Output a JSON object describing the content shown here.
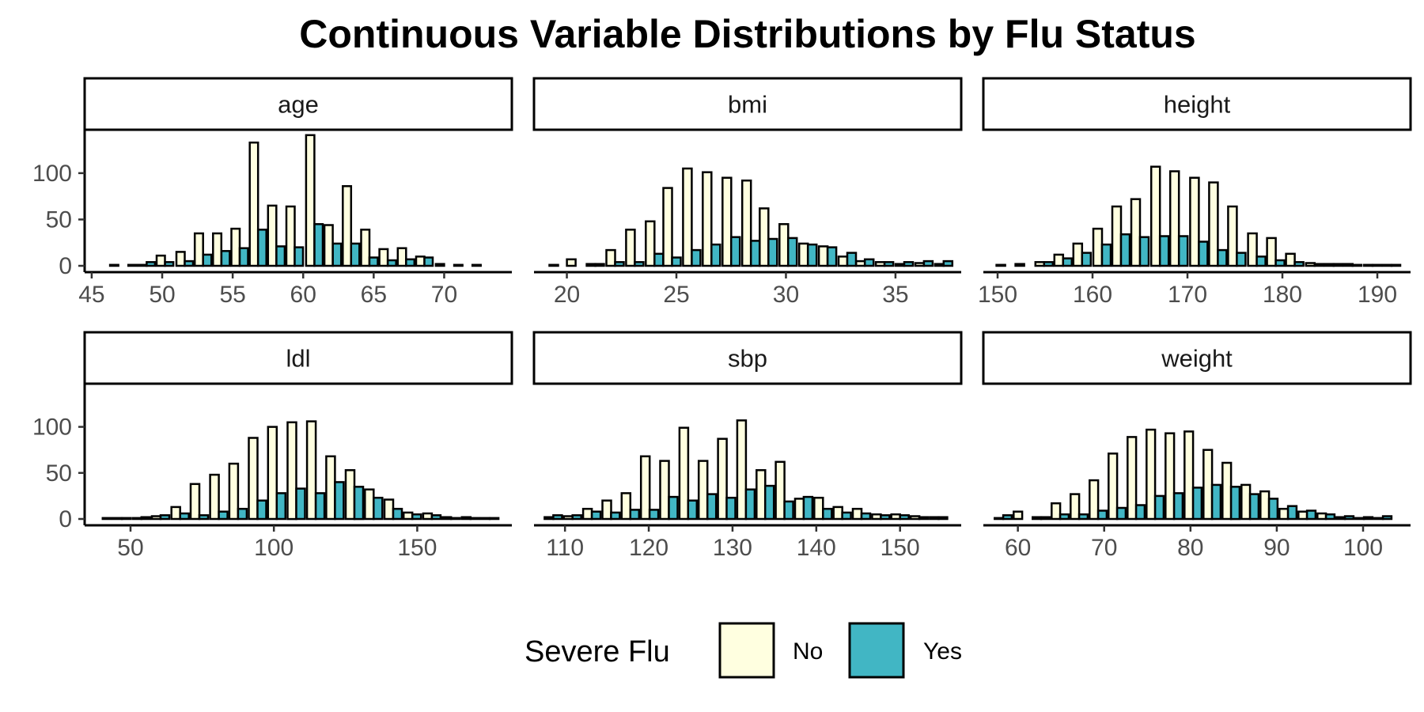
{
  "chart_data": {
    "type": "bar",
    "title": "Continuous Variable Distributions by Flu Status",
    "legend": {
      "title": "Severe Flu",
      "position": "bottom",
      "entries": [
        {
          "label": "No",
          "color": "#FFFFE0"
        },
        {
          "label": "Yes",
          "color": "#41B6C4"
        }
      ]
    },
    "ylim": [
      0,
      140
    ],
    "yticks": [
      0,
      50,
      100
    ],
    "panels": [
      {
        "label": "age",
        "xlim": [
          44.5,
          74.8
        ],
        "xticks": [
          45,
          50,
          55,
          60,
          65,
          70
        ],
        "bins": [
          46.3,
          47.6,
          48.9,
          50.2,
          51.6,
          52.9,
          54.2,
          55.5,
          56.8,
          58.1,
          59.4,
          60.8,
          62.1,
          63.4,
          64.7,
          66.0,
          67.3,
          68.6,
          70.0,
          71.3,
          72.6
        ],
        "series": [
          {
            "name": "No",
            "values": [
              0,
              0,
              1,
              11,
              15,
              35,
              35,
              40,
              133,
              65,
              64,
              141,
              44,
              86,
              39,
              18,
              19,
              10,
              2,
              1,
              1
            ]
          },
          {
            "name": "Yes",
            "values": [
              1,
              1,
              4,
              4,
              5,
              12,
              16,
              19,
              39,
              21,
              20,
              45,
              24,
              24,
              9,
              6,
              7,
              9,
              0,
              0,
              0
            ]
          }
        ]
      },
      {
        "label": "bmi",
        "xlim": [
          18.5,
          38.0
        ],
        "xticks": [
          20,
          25,
          30,
          35
        ],
        "bins": [
          19.6,
          20.4,
          21.3,
          22.2,
          23.1,
          24.0,
          24.8,
          25.7,
          26.6,
          27.5,
          28.4,
          29.2,
          30.1,
          31.0,
          31.9,
          32.8,
          33.6,
          34.5,
          35.4,
          36.3,
          37.2
        ],
        "series": [
          {
            "name": "No",
            "values": [
              1,
              7,
              2,
              17,
              39,
              48,
              84,
              105,
              101,
              95,
              92,
              62,
              45,
              24,
              21,
              10,
              5,
              4,
              2,
              3,
              2
            ]
          },
          {
            "name": "Yes",
            "values": [
              0,
              0,
              2,
              4,
              4,
              13,
              9,
              17,
              23,
              31,
              27,
              29,
              30,
              23,
              20,
              14,
              7,
              4,
              4,
              5,
              5
            ]
          }
        ]
      },
      {
        "label": "height",
        "xlim": [
          148.5,
          193.5
        ],
        "xticks": [
          150,
          160,
          170,
          180,
          190
        ],
        "bins": [
          150.8,
          152.8,
          154.9,
          156.9,
          158.9,
          161.0,
          163.0,
          165.0,
          167.1,
          169.1,
          171.2,
          173.2,
          175.2,
          177.3,
          179.3,
          181.3,
          183.4,
          185.4,
          187.4,
          189.5,
          191.5
        ],
        "series": [
          {
            "name": "No",
            "values": [
              1,
              2,
              4,
              12,
              24,
              40,
              64,
              72,
              107,
              102,
              95,
              90,
              64,
              35,
              30,
              13,
              3,
              2,
              2,
              1,
              1
            ]
          },
          {
            "name": "Yes",
            "values": [
              0,
              0,
              4,
              8,
              14,
              23,
              34,
              31,
              32,
              32,
              26,
              17,
              14,
              10,
              6,
              4,
              2,
              2,
              1,
              1,
              1
            ]
          }
        ]
      },
      {
        "label": "ldl",
        "xlim": [
          34,
          183
        ],
        "xticks": [
          50,
          100,
          150
        ],
        "bins": [
          40.3,
          47.0,
          53.8,
          60.5,
          67.3,
          74.0,
          80.8,
          87.5,
          94.3,
          101.0,
          107.8,
          114.6,
          121.3,
          128.1,
          134.8,
          141.6,
          148.3,
          155.1,
          161.8,
          168.6,
          175.3
        ],
        "series": [
          {
            "name": "No",
            "values": [
              0,
              1,
              1,
              3,
              13,
              38,
              48,
              60,
              88,
              100,
              105,
              106,
              68,
              53,
              32,
              21,
              7,
              6,
              2,
              2,
              1
            ]
          },
          {
            "name": "Yes",
            "values": [
              1,
              1,
              2,
              4,
              6,
              4,
              8,
              11,
              20,
              28,
              33,
              28,
              40,
              35,
              23,
              11,
              5,
              4,
              1,
              1,
              1
            ]
          }
        ]
      },
      {
        "label": "sbp",
        "xlim": [
          106.3,
          157.3
        ],
        "xticks": [
          110,
          120,
          130,
          140,
          150
        ],
        "bins": [
          108.6,
          110.9,
          113.2,
          115.5,
          117.8,
          120.1,
          122.4,
          124.7,
          127.0,
          129.3,
          131.6,
          133.9,
          136.2,
          138.5,
          140.8,
          143.1,
          145.4,
          147.7,
          150.0,
          152.3,
          154.6
        ],
        "series": [
          {
            "name": "No",
            "values": [
              2,
              3,
              11,
              20,
              28,
              68,
              63,
              99,
              63,
              87,
              107,
              53,
              62,
              22,
              23,
              13,
              11,
              5,
              5,
              3,
              2
            ]
          },
          {
            "name": "Yes",
            "values": [
              4,
              4,
              8,
              7,
              10,
              10,
              24,
              20,
              27,
              23,
              32,
              36,
              19,
              24,
              11,
              7,
              6,
              4,
              4,
              2,
              2
            ]
          }
        ]
      },
      {
        "label": "weight",
        "xlim": [
          56,
          105.5
        ],
        "xticks": [
          60,
          70,
          80,
          90,
          100
        ],
        "bins": [
          58.3,
          60.5,
          62.7,
          64.9,
          67.1,
          69.3,
          71.5,
          73.7,
          75.9,
          78.1,
          80.3,
          82.5,
          84.7,
          86.9,
          89.1,
          91.3,
          93.5,
          95.7,
          97.9,
          100.1,
          102.3
        ],
        "series": [
          {
            "name": "No",
            "values": [
              1,
              8,
              2,
              17,
              27,
              42,
              71,
              89,
              97,
              93,
              95,
              75,
              61,
              37,
              30,
              11,
              8,
              6,
              2,
              1,
              1
            ]
          },
          {
            "name": "Yes",
            "values": [
              4,
              0,
              2,
              5,
              5,
              9,
              12,
              15,
              25,
              28,
              34,
              37,
              35,
              27,
              22,
              14,
              9,
              5,
              3,
              2,
              3
            ]
          }
        ]
      }
    ]
  }
}
